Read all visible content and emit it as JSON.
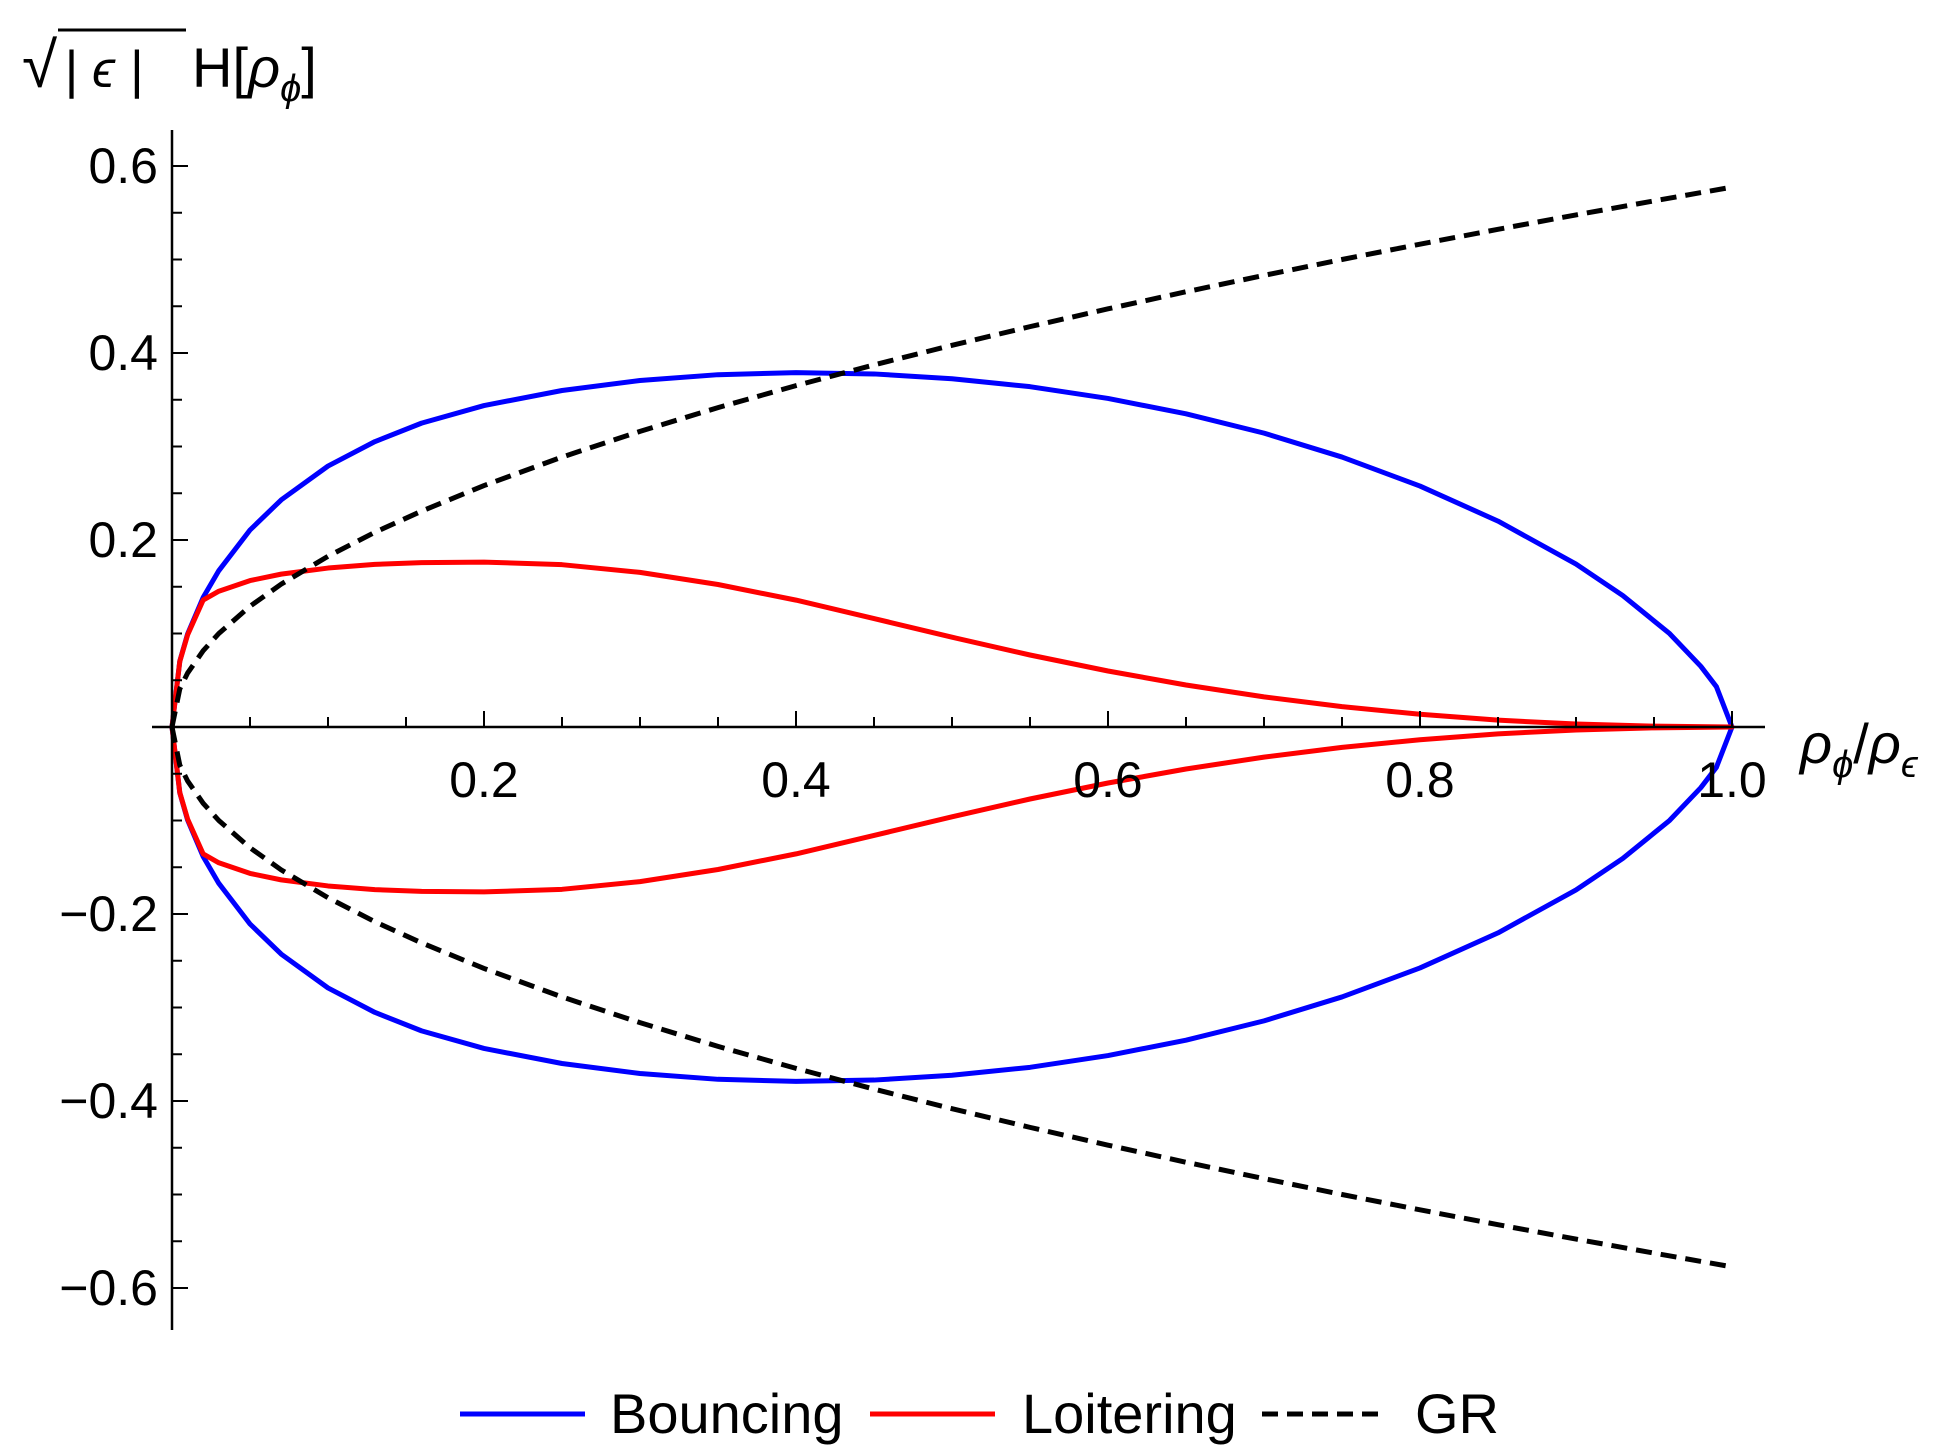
{
  "chart_data": {
    "type": "line",
    "title": "",
    "xlabel": {
      "base": "ρ",
      "sub": "ϕ",
      "slash": "/",
      "base2": "ρ",
      "sub2": "ϵ"
    },
    "ylabel": {
      "sqrt": "√",
      "inner": "| ϵ |",
      "func": "H[",
      "base": "ρ",
      "sub": "ϕ",
      "close": "]"
    },
    "xlim": [
      0,
      1.0
    ],
    "ylim": [
      -0.6,
      0.6
    ],
    "x_ticks": [
      {
        "value": 0.2,
        "label": "0.2"
      },
      {
        "value": 0.4,
        "label": "0.4"
      },
      {
        "value": 0.6,
        "label": "0.6"
      },
      {
        "value": 0.8,
        "label": "0.8"
      },
      {
        "value": 1.0,
        "label": "1.0"
      }
    ],
    "y_ticks": [
      {
        "value": 0.6,
        "label": "0.6"
      },
      {
        "value": 0.4,
        "label": "0.4"
      },
      {
        "value": 0.2,
        "label": "0.2"
      },
      {
        "value": -0.2,
        "label": "−0.2"
      },
      {
        "value": -0.4,
        "label": "−0.4"
      },
      {
        "value": -0.6,
        "label": "−0.6"
      }
    ],
    "grid": false,
    "legend_position": "bottom",
    "series": [
      {
        "name": "Bouncing",
        "color": "#0000ff",
        "dash": "solid",
        "symmetric": true,
        "x": [
          0,
          0.005,
          0.01,
          0.02,
          0.03,
          0.05,
          0.07,
          0.1,
          0.13,
          0.16,
          0.2,
          0.25,
          0.3,
          0.35,
          0.4,
          0.45,
          0.5,
          0.55,
          0.6,
          0.65,
          0.7,
          0.75,
          0.8,
          0.85,
          0.9,
          0.93,
          0.96,
          0.98,
          0.99,
          1.0
        ],
        "y": [
          0,
          0.0705,
          0.0995,
          0.1386,
          0.1672,
          0.2107,
          0.2429,
          0.2791,
          0.3052,
          0.325,
          0.3438,
          0.3599,
          0.3706,
          0.3768,
          0.379,
          0.3776,
          0.3725,
          0.364,
          0.3514,
          0.335,
          0.3143,
          0.2887,
          0.2577,
          0.2202,
          0.1743,
          0.1406,
          0.0999,
          0.0649,
          0.0431,
          0
        ]
      },
      {
        "name": "Loitering",
        "color": "#ff0000",
        "dash": "solid",
        "symmetric": true,
        "x": [
          0,
          0.005,
          0.01,
          0.02,
          0.03,
          0.05,
          0.07,
          0.1,
          0.13,
          0.16,
          0.2,
          0.25,
          0.3,
          0.35,
          0.4,
          0.45,
          0.5,
          0.55,
          0.6,
          0.65,
          0.7,
          0.75,
          0.8,
          0.85,
          0.9,
          0.95,
          1.0
        ],
        "y": [
          0,
          0.0702,
          0.0985,
          0.1358,
          0.1452,
          0.1566,
          0.1635,
          0.17,
          0.1739,
          0.1758,
          0.1764,
          0.1736,
          0.1654,
          0.1524,
          0.1357,
          0.116,
          0.096,
          0.077,
          0.0599,
          0.0449,
          0.0322,
          0.0218,
          0.0136,
          0.0073,
          0.0032,
          0.0009,
          0
        ]
      },
      {
        "name": "GR",
        "color": "#000000",
        "dash": "dashed",
        "symmetric": true,
        "x": [
          0,
          0.005,
          0.01,
          0.02,
          0.03,
          0.05,
          0.07,
          0.1,
          0.13,
          0.16,
          0.2,
          0.25,
          0.3,
          0.35,
          0.4,
          0.45,
          0.5,
          0.55,
          0.6,
          0.65,
          0.7,
          0.75,
          0.8,
          0.85,
          0.9,
          0.95,
          1.0
        ],
        "y": [
          0,
          0.0408,
          0.0577,
          0.0816,
          0.1,
          0.1291,
          0.1528,
          0.1826,
          0.2082,
          0.2309,
          0.2582,
          0.2887,
          0.3162,
          0.3416,
          0.3651,
          0.3873,
          0.4082,
          0.4282,
          0.4472,
          0.4655,
          0.483,
          0.5,
          0.5164,
          0.5323,
          0.5477,
          0.5627,
          0.5774
        ]
      }
    ]
  }
}
